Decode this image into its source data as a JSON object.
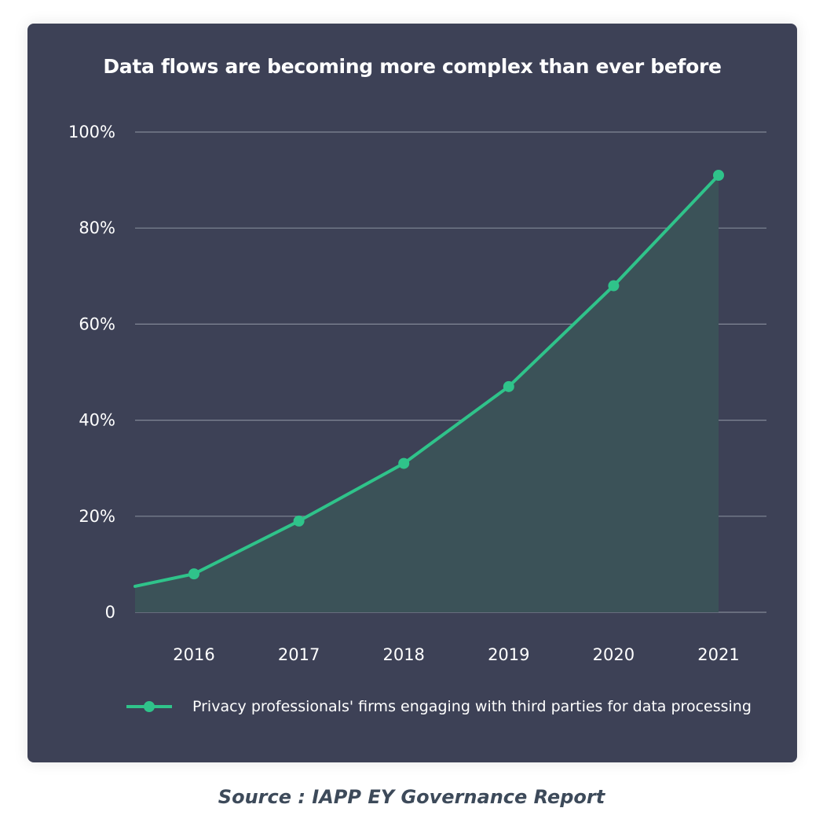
{
  "chart_data": {
    "type": "area",
    "title": "Data flows are becoming more complex than ever before",
    "xlabel": "",
    "ylabel": "",
    "categories": [
      "2016",
      "2017",
      "2018",
      "2019",
      "2020",
      "2021"
    ],
    "ylim": [
      0,
      100
    ],
    "y_ticks": [
      "0",
      "20%",
      "40%",
      "60%",
      "80%",
      "100%"
    ],
    "y_tick_values": [
      0,
      20,
      40,
      60,
      80,
      100
    ],
    "grid": true,
    "legend_position": "bottom",
    "series": [
      {
        "name": "Privacy professionals' firms engaging with third parties for data processing",
        "values": [
          8,
          19,
          31,
          47,
          68,
          91
        ],
        "color": "#2fc38a",
        "fill": "#3b5258"
      }
    ]
  },
  "source": "Source : IAPP EY Governance Report",
  "colors": {
    "card_background": "#3d4156",
    "line": "#2fc38a",
    "area_fill": "#3b5258",
    "gridline": "#9aa0ad"
  }
}
